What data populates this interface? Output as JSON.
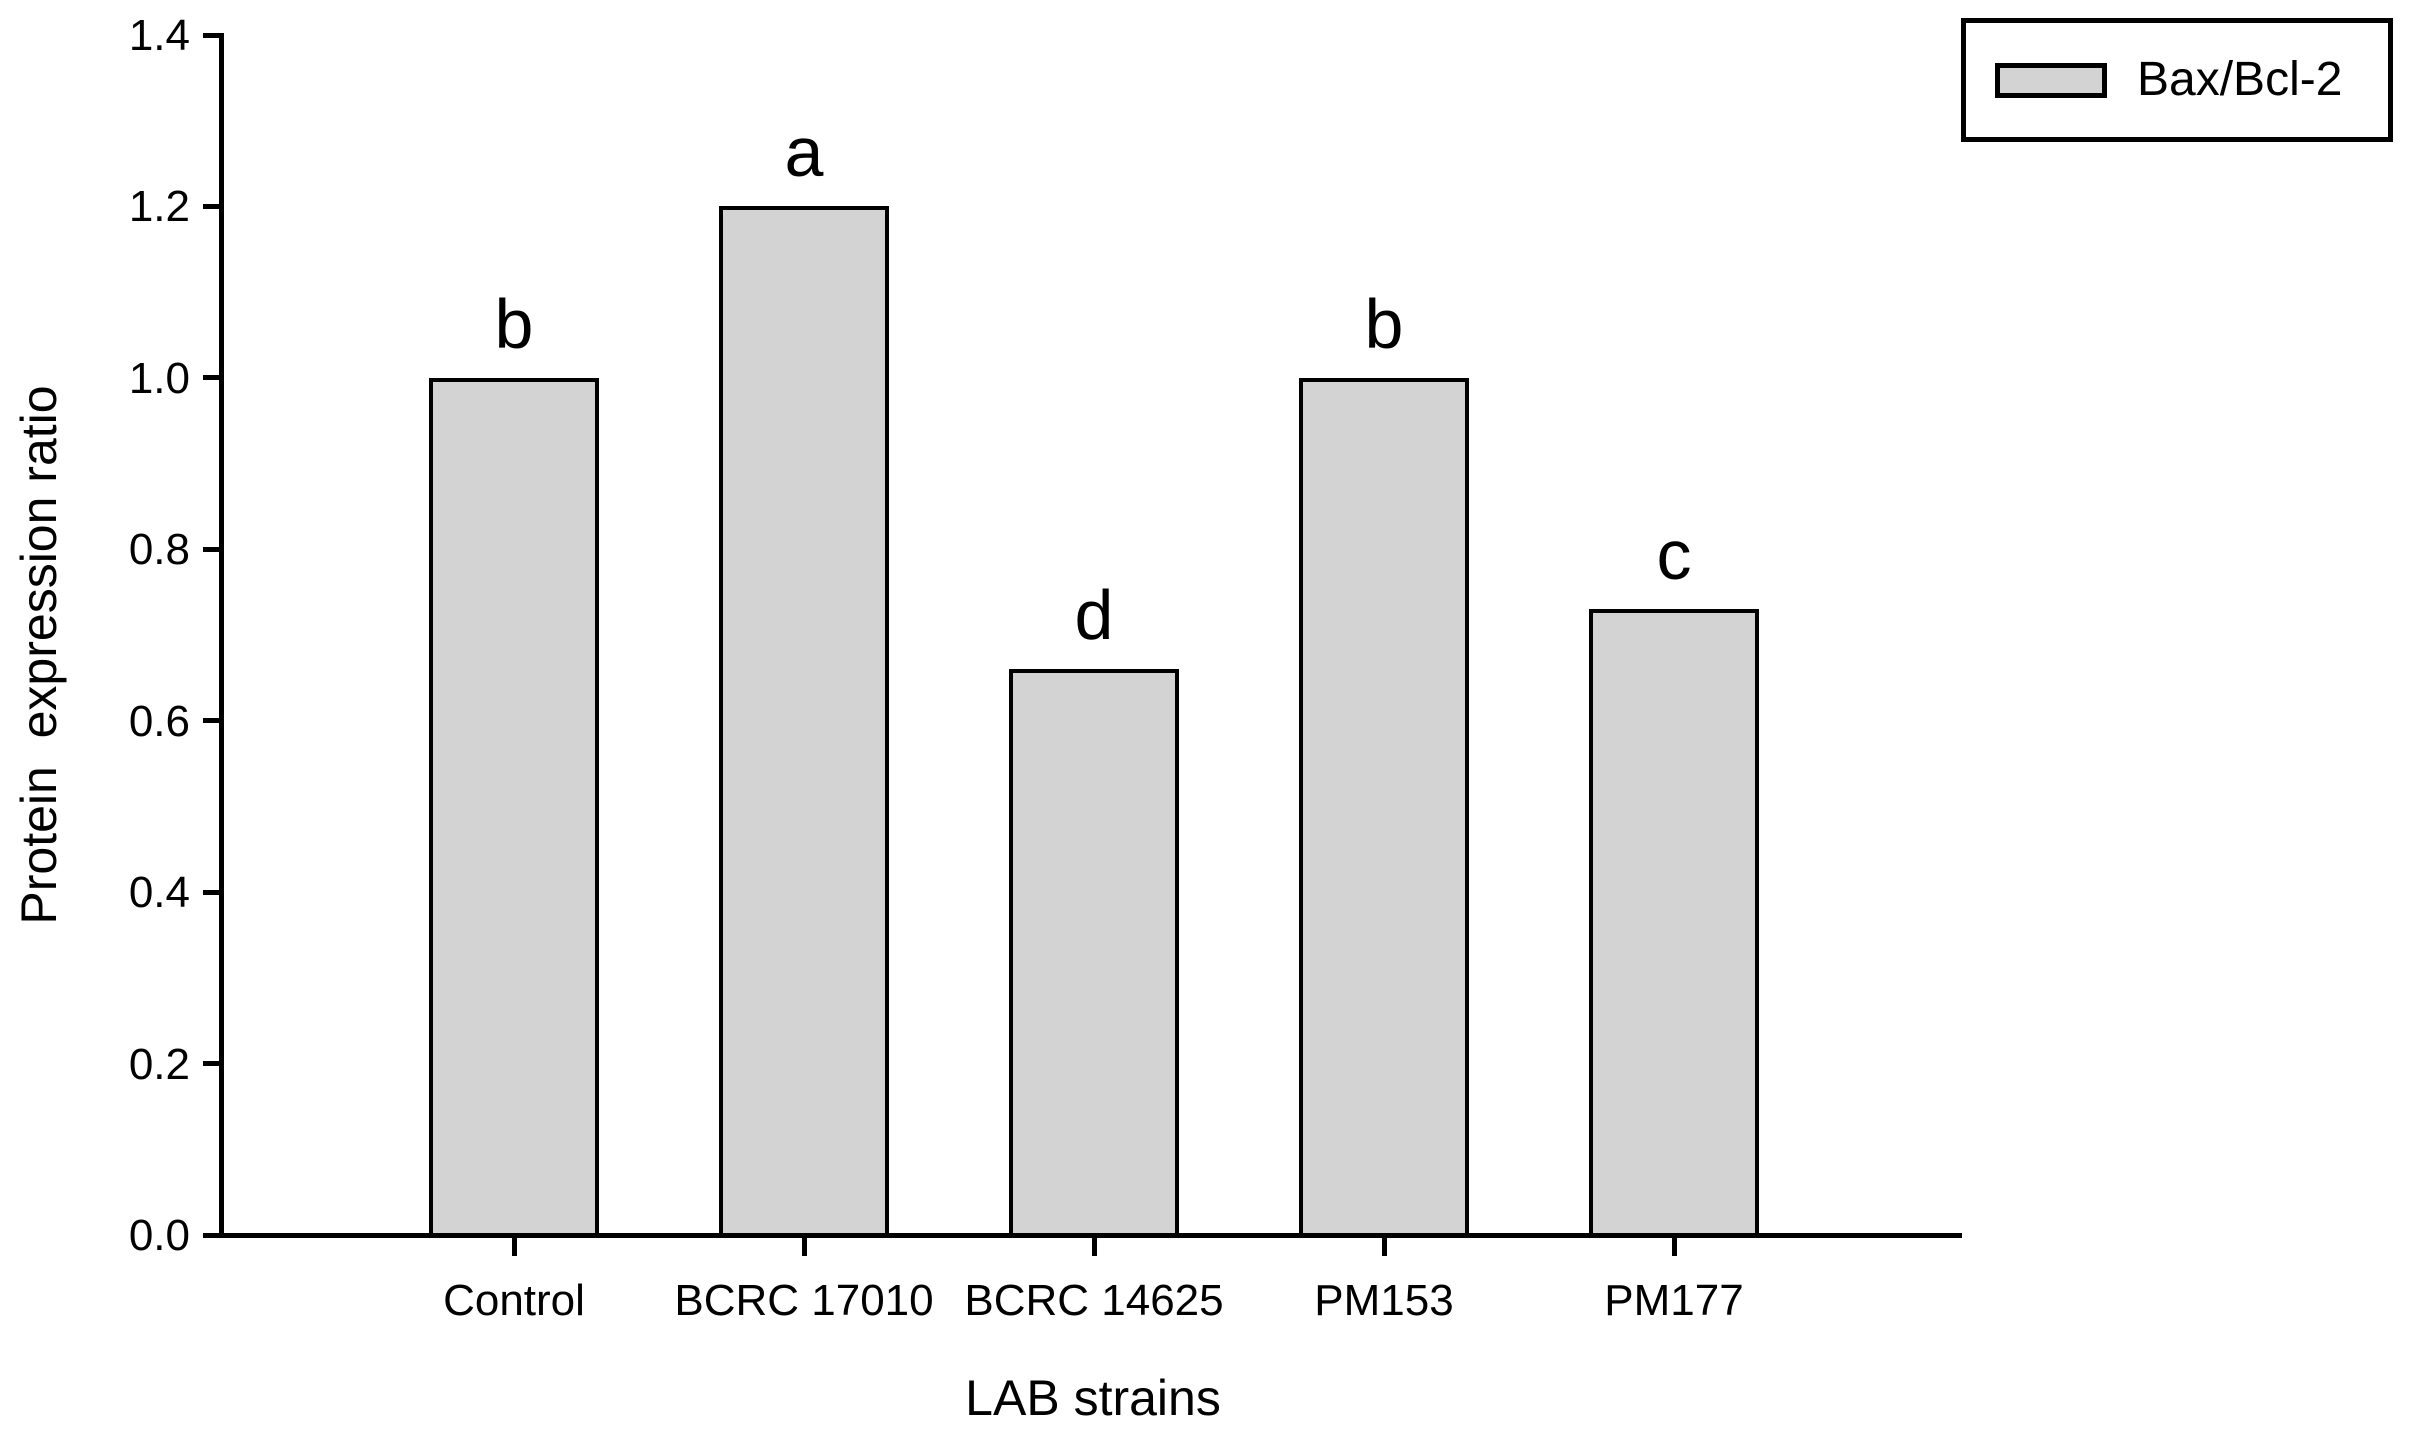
{
  "chart_data": {
    "type": "bar",
    "title": "",
    "xlabel": "LAB strains",
    "ylabel": "Protein  expression ratio",
    "categories": [
      "Control",
      "BCRC 17010",
      "BCRC 14625",
      "PM153",
      "PM177"
    ],
    "values": [
      1.0,
      1.2,
      0.66,
      1.0,
      0.73
    ],
    "bar_labels": [
      "b",
      "a",
      "d",
      "b",
      "c"
    ],
    "ylim": [
      0.0,
      1.4
    ],
    "ytick_labels": [
      "1.4",
      "1.2",
      "1.0",
      "0.8",
      "0.6",
      "0.4",
      "0.2",
      "0.0"
    ],
    "grid": false,
    "bar_color": "#d3d3d3",
    "bar_border_color": "#000000",
    "axis_color": "#000000",
    "legend": {
      "position": "upper-right",
      "entries": [
        {
          "label": "Bax/Bcl-2",
          "swatch_color": "#d3d3d3"
        }
      ]
    }
  }
}
